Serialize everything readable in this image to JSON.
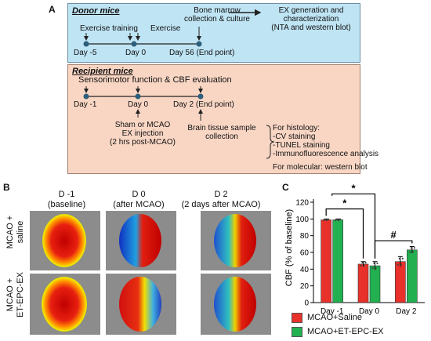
{
  "panels": {
    "a": "A",
    "b": "B",
    "c": "C"
  },
  "donor": {
    "title": "Donor mice",
    "exercise_training": "Exercise training",
    "exercise": "Exercise",
    "bone_marrow_line1": "Bone marrow",
    "bone_marrow_line2": "collection & culture",
    "ex_gen_line1": "EX generation and",
    "ex_gen_line2": "characterization",
    "ex_gen_line3": "(NTA and western blot)",
    "day_m5": "Day  -5",
    "day_0": "Day 0",
    "day_56": "Day 56 (End point)"
  },
  "recipient": {
    "title": "Recipient mice",
    "sensorimotor": "Sensorimotor function & CBF evaluation",
    "day_m1": "Day  -1",
    "day_0": "Day 0",
    "day_2": "Day 2 (End point)",
    "sham_line1": "Sham or MCAO",
    "sham_line2": "EX injection",
    "sham_line3": "(2 hrs post-MCAO)",
    "brain_line1": "Brain tissue sample",
    "brain_line2": "collection",
    "histology_title": "For histology:",
    "histology_items": [
      "-CV staining",
      "-TUNEL staining",
      "-Immunofluorescence analysis"
    ],
    "molecular": "For molecular: western blot"
  },
  "images": {
    "columns": [
      {
        "line1": "D -1",
        "line2": "(baseline)"
      },
      {
        "line1": "D 0",
        "line2": "(after MCAO)"
      },
      {
        "line1": "D 2",
        "line2": "(2 days after MCAO)"
      }
    ],
    "rows": [
      {
        "line1": "MCAO +",
        "line2": "saline"
      },
      {
        "line1": "MCAO +",
        "line2": "ET-EPC-EX"
      }
    ]
  },
  "colors": {
    "saline": "#e8312a",
    "treated": "#23b050",
    "donor_bg": "#bfe4f4",
    "recipient_bg": "#f9d6c4"
  },
  "chart_data": {
    "type": "bar",
    "categories": [
      "Day -1",
      "Day 0",
      "Day 2"
    ],
    "series": [
      {
        "name": "MCAO+Saline",
        "values": [
          99,
          46,
          49
        ],
        "errors": [
          1,
          3,
          6
        ]
      },
      {
        "name": "MCAO+ET-EPC-EX",
        "values": [
          99,
          44,
          63
        ],
        "errors": [
          1,
          5,
          4
        ]
      }
    ],
    "ylabel": "CBF (% of baseline)",
    "ylim": [
      0,
      120
    ],
    "yticks": [
      0,
      20,
      40,
      60,
      80,
      100,
      120
    ],
    "annotations": [
      "*",
      "*",
      "#"
    ],
    "legend_position": "bottom"
  }
}
